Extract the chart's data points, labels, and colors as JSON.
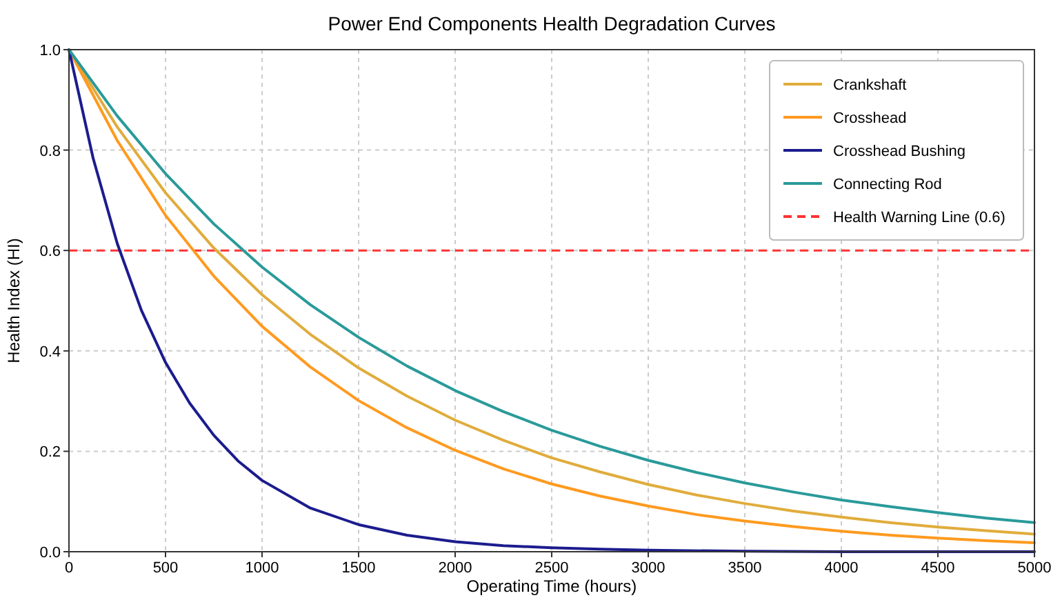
{
  "chart_data": {
    "type": "line",
    "title": "Power End Components Health Degradation Curves",
    "xlabel": "Operating Time (hours)",
    "ylabel": "Health Index (HI)",
    "x": [
      0,
      250,
      500,
      750,
      1000,
      1250,
      1500,
      1750,
      2000,
      2250,
      2500,
      2750,
      3000,
      3250,
      3500,
      3750,
      4000,
      4250,
      4500,
      4750,
      5000
    ],
    "series": [
      {
        "name": "Crankshaft",
        "color": "#e0ac3c",
        "values": [
          1,
          0.846,
          0.715,
          0.605,
          0.512,
          0.433,
          0.366,
          0.31,
          0.262,
          0.222,
          0.187,
          0.159,
          0.134,
          0.113,
          0.096,
          0.081,
          0.069,
          0.058,
          0.049,
          0.042,
          0.035
        ]
      },
      {
        "name": "Crosshead",
        "color": "#ff9a1f",
        "values": [
          1,
          0.819,
          0.67,
          0.549,
          0.449,
          0.368,
          0.301,
          0.247,
          0.202,
          0.165,
          0.135,
          0.111,
          0.091,
          0.074,
          0.061,
          0.05,
          0.041,
          0.033,
          0.027,
          0.022,
          0.018
        ]
      },
      {
        "name": "Crosshead Bushing",
        "color": "#1c1c8e",
        "x": [
          0,
          125,
          250,
          375,
          500,
          625,
          750,
          875,
          1000,
          1250,
          1500,
          1750,
          2000,
          2250,
          2500,
          2750,
          3000,
          3500,
          4000,
          5000
        ],
        "values": [
          1,
          0.784,
          0.614,
          0.481,
          0.377,
          0.296,
          0.232,
          0.181,
          0.142,
          0.087,
          0.054,
          0.033,
          0.02,
          0.012,
          0.008,
          0.005,
          0.003,
          0.001,
          0,
          0
        ]
      },
      {
        "name": "Connecting Rod",
        "color": "#2a9a9a",
        "values": [
          1,
          0.868,
          0.753,
          0.653,
          0.567,
          0.492,
          0.427,
          0.37,
          0.321,
          0.279,
          0.242,
          0.21,
          0.182,
          0.158,
          0.137,
          0.119,
          0.103,
          0.09,
          0.078,
          0.067,
          0.058
        ]
      }
    ],
    "ref_lines": [
      {
        "axis": "y",
        "value": 0.6,
        "label": "Health Warning Line (0.6)",
        "color": "#ff3333",
        "line_style": "dashed"
      }
    ],
    "xlim": [
      0,
      5000
    ],
    "xticks": [
      0,
      500,
      1000,
      1500,
      2000,
      2500,
      3000,
      3500,
      4000,
      4500,
      5000
    ],
    "ylim": [
      0,
      1
    ],
    "yticks": [
      {
        "value": 0,
        "label": "0.0"
      },
      {
        "value": 0.2,
        "label": "0.2"
      },
      {
        "value": 0.4,
        "label": "0.4"
      },
      {
        "value": 0.6,
        "label": "0.6"
      },
      {
        "value": 0.8,
        "label": "0.8"
      },
      {
        "value": 1,
        "label": "1.0"
      }
    ],
    "grid": true,
    "legend": "top right",
    "marker": "none",
    "line_style": "solid"
  }
}
